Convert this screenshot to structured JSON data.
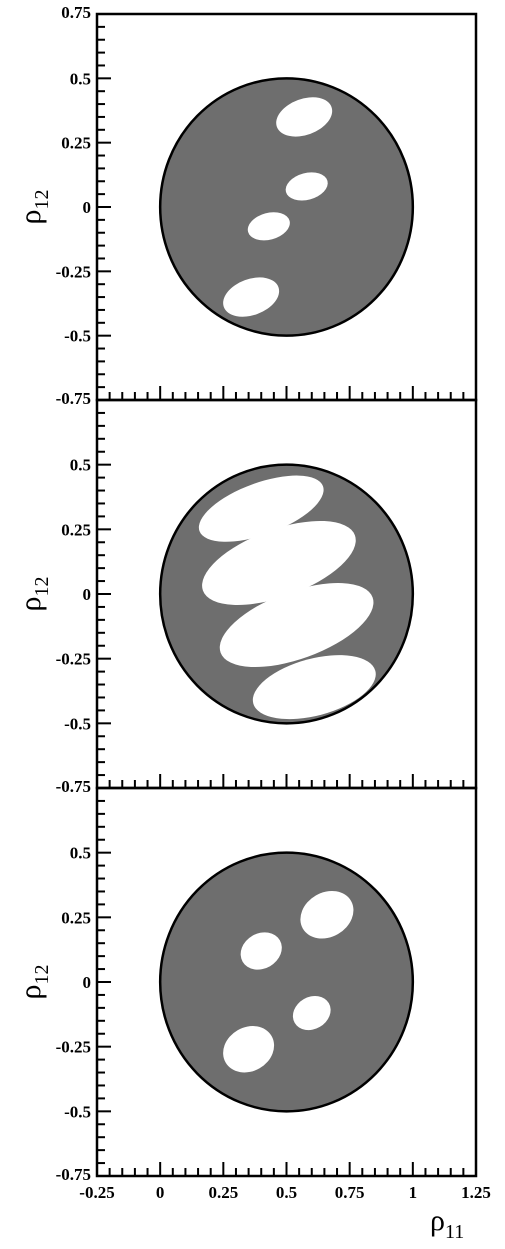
{
  "chart_data": [
    {
      "type": "scatter",
      "panel": "top",
      "xlim": [
        -0.25,
        1.25
      ],
      "ylim": [
        -0.75,
        0.75
      ],
      "xticks": [
        "-0.25",
        "0",
        "0.25",
        "0.5",
        "0.75",
        "1",
        "1.25"
      ],
      "yticks": [
        "0.75",
        "0.5",
        "0.25",
        "0",
        "-0.25",
        "-0.5",
        "-0.75"
      ],
      "ylabel": {
        "base": "ρ",
        "sub": "12"
      },
      "xlabel": {
        "base": "",
        "sub": ""
      },
      "disk": {
        "cx": 0.5,
        "cy": 0.0,
        "r": 0.5,
        "fill": "#6e6e6e"
      },
      "holes": [
        {
          "cx": 0.57,
          "cy": 0.35,
          "rx": 0.115,
          "ry": 0.07,
          "angle": 20
        },
        {
          "cx": 0.58,
          "cy": 0.08,
          "rx": 0.085,
          "ry": 0.052,
          "angle": 15
        },
        {
          "cx": 0.43,
          "cy": -0.075,
          "rx": 0.085,
          "ry": 0.052,
          "angle": 15
        },
        {
          "cx": 0.36,
          "cy": -0.35,
          "rx": 0.115,
          "ry": 0.07,
          "angle": 20
        }
      ]
    },
    {
      "type": "scatter",
      "panel": "middle",
      "xlim": [
        -0.25,
        1.25
      ],
      "ylim": [
        -0.75,
        0.75
      ],
      "xticks": [
        "-0.25",
        "0",
        "0.25",
        "0.5",
        "0.75",
        "1",
        "1.25"
      ],
      "yticks": [
        "",
        "0.5",
        "0.25",
        "0",
        "-0.25",
        "-0.5",
        "-0.75"
      ],
      "ylabel": {
        "base": "ρ",
        "sub": "12"
      },
      "xlabel": {
        "base": "",
        "sub": ""
      },
      "disk": {
        "cx": 0.5,
        "cy": 0.0,
        "r": 0.5,
        "fill": "#6e6e6e"
      },
      "holes": [
        {
          "cx": 0.4,
          "cy": 0.33,
          "rx": 0.26,
          "ry": 0.1,
          "angle": 20
        },
        {
          "cx": 0.47,
          "cy": 0.12,
          "rx": 0.32,
          "ry": 0.13,
          "angle": 20
        },
        {
          "cx": 0.54,
          "cy": -0.12,
          "rx": 0.32,
          "ry": 0.13,
          "angle": 20
        },
        {
          "cx": 0.61,
          "cy": -0.36,
          "rx": 0.25,
          "ry": 0.11,
          "angle": 15
        }
      ]
    },
    {
      "type": "scatter",
      "panel": "bottom",
      "xlim": [
        -0.25,
        1.25
      ],
      "ylim": [
        -0.75,
        0.75
      ],
      "xticks": [
        "-0.25",
        "0",
        "0.25",
        "0.5",
        "0.75",
        "1",
        "1.25"
      ],
      "yticks": [
        "",
        "0.5",
        "0.25",
        "0",
        "-0.25",
        "-0.5",
        "-0.75"
      ],
      "ylabel": {
        "base": "ρ",
        "sub": "12"
      },
      "xlabel": {
        "base": "ρ",
        "sub": "11"
      },
      "disk": {
        "cx": 0.5,
        "cy": 0.0,
        "r": 0.5,
        "fill": "#6e6e6e"
      },
      "holes": [
        {
          "cx": 0.66,
          "cy": 0.26,
          "rx": 0.11,
          "ry": 0.086,
          "angle": 30
        },
        {
          "cx": 0.4,
          "cy": 0.12,
          "rx": 0.085,
          "ry": 0.068,
          "angle": 30
        },
        {
          "cx": 0.6,
          "cy": -0.12,
          "rx": 0.078,
          "ry": 0.062,
          "angle": 30
        },
        {
          "cx": 0.35,
          "cy": -0.26,
          "rx": 0.105,
          "ry": 0.085,
          "angle": 30
        }
      ]
    }
  ],
  "colors": {
    "disk": "#6e6e6e",
    "hole": "#ffffff",
    "axis": "#000000"
  }
}
